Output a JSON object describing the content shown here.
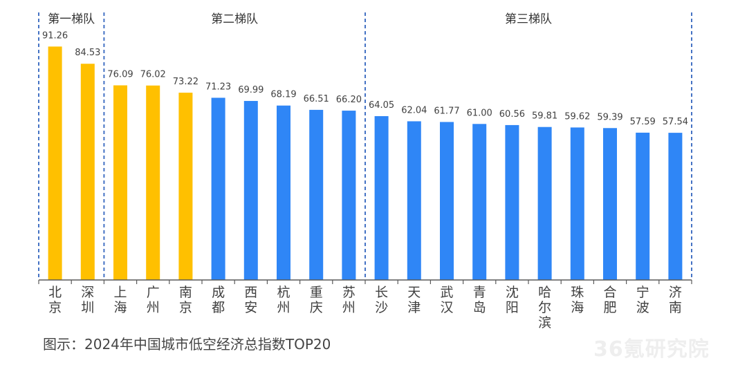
{
  "chart_data": {
    "type": "bar",
    "categories": [
      "北京",
      "深圳",
      "上海",
      "广州",
      "南京",
      "成都",
      "西安",
      "杭州",
      "重庆",
      "苏州",
      "长沙",
      "天津",
      "武汉",
      "青岛",
      "沈阳",
      "哈尔滨",
      "珠海",
      "合肥",
      "宁波",
      "济南"
    ],
    "values": [
      91.26,
      84.53,
      76.09,
      76.02,
      73.22,
      71.23,
      69.99,
      68.19,
      66.51,
      66.2,
      64.05,
      62.04,
      61.77,
      61.0,
      60.56,
      59.81,
      59.62,
      59.39,
      57.59,
      57.54
    ],
    "value_labels": [
      "91.26",
      "84.53",
      "76.09",
      "76.02",
      "73.22",
      "71.23",
      "69.99",
      "68.19",
      "66.51",
      "66.20",
      "64.05",
      "62.04",
      "61.77",
      "61.00",
      "60.56",
      "59.81",
      "59.62",
      "59.39",
      "57.59",
      "57.54"
    ],
    "bar_colors": [
      "#FFC000",
      "#FFC000",
      "#FFC000",
      "#FFC000",
      "#FFC000",
      "#2F86F6",
      "#2F86F6",
      "#2F86F6",
      "#2F86F6",
      "#2F86F6",
      "#2F86F6",
      "#2F86F6",
      "#2F86F6",
      "#2F86F6",
      "#2F86F6",
      "#2F86F6",
      "#2F86F6",
      "#2F86F6",
      "#2F86F6",
      "#2F86F6"
    ],
    "colors": {
      "highlight": "#FFC000",
      "default": "#2F86F6",
      "divider": "#4472C4",
      "axis": "#595959"
    },
    "tiers": [
      {
        "label": "第一梯队",
        "start": 0,
        "end": 1
      },
      {
        "label": "第二梯队",
        "start": 2,
        "end": 9
      },
      {
        "label": "第三梯队",
        "start": 10,
        "end": 19
      }
    ],
    "ylim": [
      0,
      100
    ],
    "xlabel": "",
    "ylabel": "",
    "grid": false,
    "legend": "none"
  },
  "caption": "图示：2024年中国城市低空经济总指数TOP20",
  "watermark": "36氪研究院"
}
